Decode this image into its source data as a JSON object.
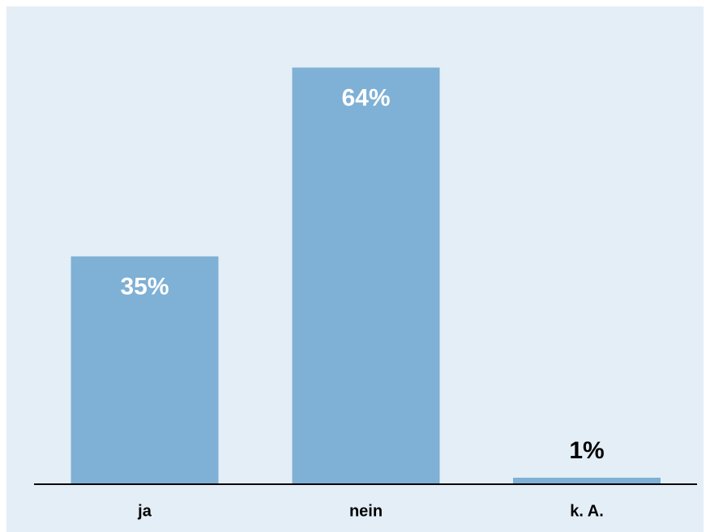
{
  "chart_data": {
    "type": "bar",
    "categories": [
      "ja",
      "nein",
      "k. A."
    ],
    "values": [
      35,
      64,
      1
    ],
    "value_labels": [
      "35%",
      "64%",
      "1%"
    ],
    "color": "#7fb0d5"
  }
}
